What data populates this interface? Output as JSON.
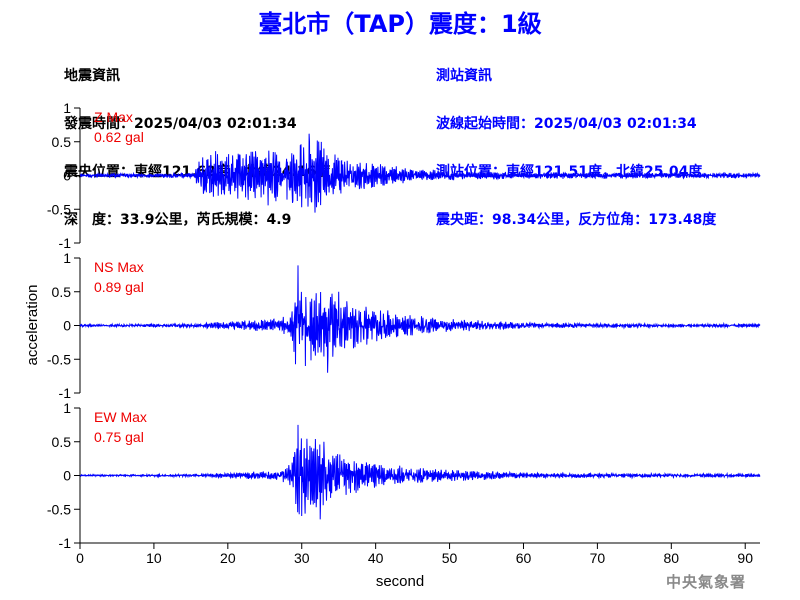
{
  "header": {
    "title": "臺北市（TAP）震度：1級"
  },
  "quake_info": {
    "heading": "地震資訊",
    "time": "發震時間：2025/04/03 02:01:34",
    "epicenter": "震央位置：東經121.62度，北緯24.16度",
    "depth_magnitude": "深　度：33.9公里，芮氏規模：4.9"
  },
  "station_info": {
    "heading": "測站資訊",
    "wave_start": "波線起始時間：2025/04/03 02:01:34",
    "location": "測站位置：東經121.51度，北緯25.04度",
    "distance_azimuth": "震央距：98.34公里，反方位角：173.48度"
  },
  "footer": {
    "agency": "中央氣象署"
  },
  "colors": {
    "title": "#0000ff",
    "trace": "#0000ff",
    "max_label": "#ee0000",
    "axis": "#000000",
    "agency": "#8a8a8a"
  },
  "chart_data": {
    "type": "line",
    "xlabel": "second",
    "ylabel": "acceleration",
    "xlim": [
      0,
      92
    ],
    "x_ticks": [
      0,
      10,
      20,
      30,
      40,
      50,
      60,
      70,
      80,
      90
    ],
    "y_ticks": [
      -1,
      -0.5,
      0,
      0.5,
      1
    ],
    "y_tick_labels": [
      "-1",
      "-0.5",
      "0",
      "0.5",
      "1"
    ],
    "ylim": [
      -1,
      1
    ],
    "grid": false,
    "series": [
      {
        "name": "Z",
        "max_label": "Z Max",
        "max_value": "0.62 gal",
        "envelope": [
          [
            0,
            0.02
          ],
          [
            15.5,
            0.03
          ],
          [
            16,
            0.2
          ],
          [
            18,
            0.3
          ],
          [
            20,
            0.3
          ],
          [
            22,
            0.35
          ],
          [
            25,
            0.35
          ],
          [
            28,
            0.3
          ],
          [
            30,
            0.45
          ],
          [
            31,
            0.55
          ],
          [
            33,
            0.35
          ],
          [
            36,
            0.2
          ],
          [
            40,
            0.15
          ],
          [
            45,
            0.08
          ],
          [
            52,
            0.05
          ],
          [
            60,
            0.04
          ],
          [
            92,
            0.03
          ]
        ],
        "peaks": [
          [
            21.5,
            0.3
          ],
          [
            29.8,
            0.45
          ],
          [
            31,
            0.62
          ],
          [
            31.8,
            -0.55
          ],
          [
            33,
            0.4
          ]
        ]
      },
      {
        "name": "NS",
        "max_label": "NS Max",
        "max_value": "0.89 gal",
        "envelope": [
          [
            0,
            0.015
          ],
          [
            15,
            0.02
          ],
          [
            20,
            0.05
          ],
          [
            27,
            0.08
          ],
          [
            28.5,
            0.15
          ],
          [
            29.2,
            0.5
          ],
          [
            30,
            0.5
          ],
          [
            32,
            0.45
          ],
          [
            34,
            0.4
          ],
          [
            36,
            0.3
          ],
          [
            40,
            0.2
          ],
          [
            45,
            0.12
          ],
          [
            50,
            0.08
          ],
          [
            56,
            0.05
          ],
          [
            62,
            0.03
          ],
          [
            92,
            0.02
          ]
        ],
        "peaks": [
          [
            29.5,
            0.89
          ],
          [
            30.5,
            -0.6
          ],
          [
            33.5,
            -0.7
          ],
          [
            35,
            0.5
          ]
        ]
      },
      {
        "name": "EW",
        "max_label": "EW Max",
        "max_value": "0.75 gal",
        "envelope": [
          [
            0,
            0.01
          ],
          [
            15,
            0.015
          ],
          [
            20,
            0.03
          ],
          [
            27,
            0.06
          ],
          [
            28.5,
            0.15
          ],
          [
            29.2,
            0.5
          ],
          [
            30,
            0.5
          ],
          [
            31.5,
            0.45
          ],
          [
            33,
            0.35
          ],
          [
            35,
            0.25
          ],
          [
            40,
            0.15
          ],
          [
            45,
            0.1
          ],
          [
            50,
            0.07
          ],
          [
            56,
            0.05
          ],
          [
            62,
            0.03
          ],
          [
            92,
            0.02
          ]
        ],
        "peaks": [
          [
            29.5,
            0.75
          ],
          [
            30,
            -0.6
          ],
          [
            33,
            0.5
          ],
          [
            32.5,
            -0.65
          ]
        ]
      }
    ]
  }
}
